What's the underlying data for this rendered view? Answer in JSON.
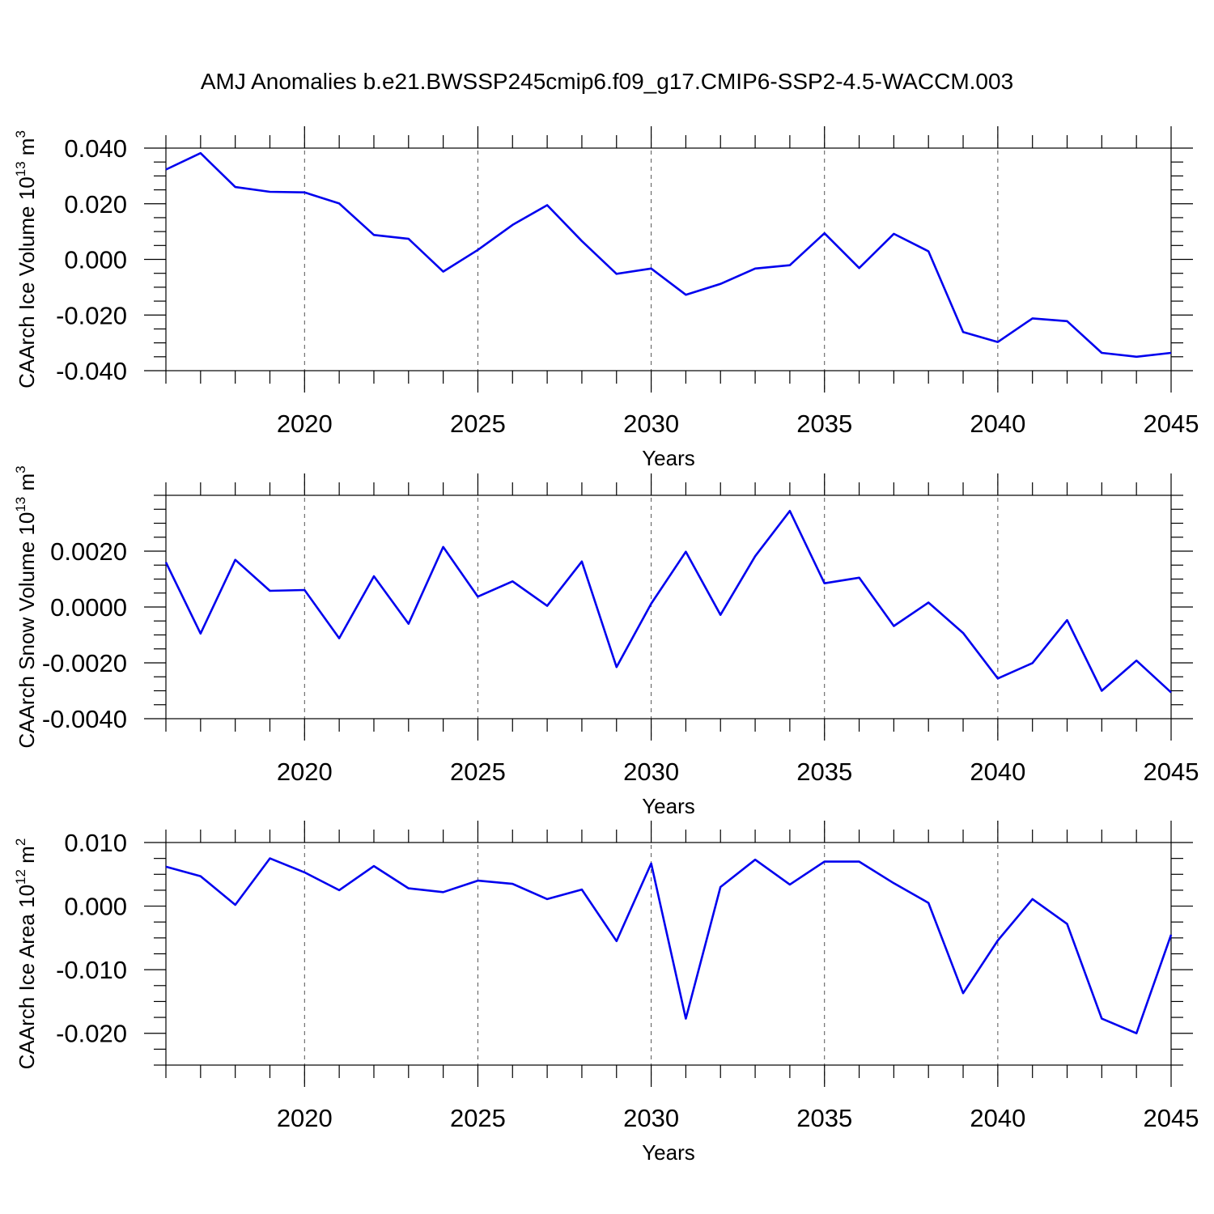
{
  "title": "AMJ Anomalies b.e21.BWSSP245cmip6.f09_g17.CMIP6-SSP2-4.5-WACCM.003",
  "series_color": "#0000ee",
  "chart_data": [
    {
      "type": "line",
      "xlabel": "Years",
      "ylabel": "CAArch Ice Volume 10",
      "ylabel_exp": "13",
      "ylabel_unit": " m",
      "ylabel_unit_exp": "3",
      "xlim": [
        2016,
        2045
      ],
      "ylim": [
        -0.04,
        0.04
      ],
      "xticks": [
        2020,
        2025,
        2030,
        2035,
        2040,
        2045
      ],
      "xtick_labels": [
        "2020",
        "2025",
        "2030",
        "2035",
        "2040",
        "2045"
      ],
      "yticks": [
        -0.04,
        -0.02,
        0.0,
        0.02,
        0.04
      ],
      "ytick_labels": [
        "-0.040",
        "-0.020",
        "0.000",
        "0.020",
        "0.040"
      ],
      "x": [
        2016,
        2017,
        2018,
        2019,
        2020,
        2021,
        2022,
        2023,
        2024,
        2025,
        2026,
        2027,
        2028,
        2029,
        2030,
        2031,
        2032,
        2033,
        2034,
        2035,
        2036,
        2037,
        2038,
        2039,
        2040,
        2041,
        2042,
        2043,
        2044,
        2045
      ],
      "values": [
        0.0323,
        0.0382,
        0.026,
        0.0243,
        0.0241,
        0.0201,
        0.0088,
        0.0074,
        -0.0044,
        0.0034,
        0.0124,
        0.0195,
        0.0066,
        -0.0052,
        -0.0033,
        -0.0127,
        -0.0088,
        -0.0033,
        -0.0021,
        0.0094,
        -0.0031,
        0.0092,
        0.0029,
        -0.0261,
        -0.0297,
        -0.0212,
        -0.0222,
        -0.0336,
        -0.035,
        -0.0336
      ]
    },
    {
      "type": "line",
      "xlabel": "Years",
      "ylabel": "CAArch Snow Volume 10",
      "ylabel_exp": "13",
      "ylabel_unit": " m",
      "ylabel_unit_exp": "3",
      "xlim": [
        2016,
        2045
      ],
      "ylim": [
        -0.004,
        0.004
      ],
      "xticks": [
        2020,
        2025,
        2030,
        2035,
        2040,
        2045
      ],
      "xtick_labels": [
        "2020",
        "2025",
        "2030",
        "2035",
        "2040",
        "2045"
      ],
      "yticks": [
        -0.004,
        -0.002,
        0.0,
        0.002
      ],
      "ytick_labels": [
        "-0.0040",
        "-0.0020",
        "0.0000",
        "0.0020"
      ],
      "x": [
        2016,
        2017,
        2018,
        2019,
        2020,
        2021,
        2022,
        2023,
        2024,
        2025,
        2026,
        2027,
        2028,
        2029,
        2030,
        2031,
        2032,
        2033,
        2034,
        2035,
        2036,
        2037,
        2038,
        2039,
        2040,
        2041,
        2042,
        2043,
        2044,
        2045
      ],
      "values": [
        0.0016,
        -0.00095,
        0.00169,
        0.00058,
        0.00061,
        -0.00112,
        0.0011,
        -0.0006,
        0.00215,
        0.00037,
        0.00092,
        4e-05,
        0.00163,
        -0.00215,
        0.00012,
        0.00198,
        -0.00028,
        0.00182,
        0.00344,
        0.00085,
        0.00105,
        -0.00068,
        0.00016,
        -0.00093,
        -0.00256,
        -0.00201,
        -0.00047,
        -0.003,
        -0.00192,
        -0.00306
      ]
    },
    {
      "type": "line",
      "xlabel": "Years",
      "ylabel": "CAArch Ice Area 10",
      "ylabel_exp": "12",
      "ylabel_unit": " m",
      "ylabel_unit_exp": "2",
      "xlim": [
        2016,
        2045
      ],
      "ylim": [
        -0.025,
        0.01
      ],
      "xticks": [
        2020,
        2025,
        2030,
        2035,
        2040,
        2045
      ],
      "xtick_labels": [
        "2020",
        "2025",
        "2030",
        "2035",
        "2040",
        "2045"
      ],
      "yticks": [
        -0.02,
        -0.01,
        0.0,
        0.01
      ],
      "ytick_labels": [
        "-0.020",
        "-0.010",
        "0.000",
        "0.010"
      ],
      "x": [
        2016,
        2017,
        2018,
        2019,
        2020,
        2021,
        2022,
        2023,
        2024,
        2025,
        2026,
        2027,
        2028,
        2029,
        2030,
        2031,
        2032,
        2033,
        2034,
        2035,
        2036,
        2037,
        2038,
        2039,
        2040,
        2041,
        2042,
        2043,
        2044,
        2045
      ],
      "values": [
        0.0062,
        0.0047,
        0.0002,
        0.0075,
        0.0053,
        0.0025,
        0.0063,
        0.0028,
        0.0022,
        0.004,
        0.0035,
        0.0011,
        0.0026,
        -0.0055,
        0.0067,
        -0.0177,
        0.003,
        0.0073,
        0.0034,
        0.007,
        0.007,
        0.0036,
        0.0005,
        -0.0137,
        -0.0054,
        0.0011,
        -0.0028,
        -0.0177,
        -0.02,
        -0.0045
      ]
    }
  ]
}
